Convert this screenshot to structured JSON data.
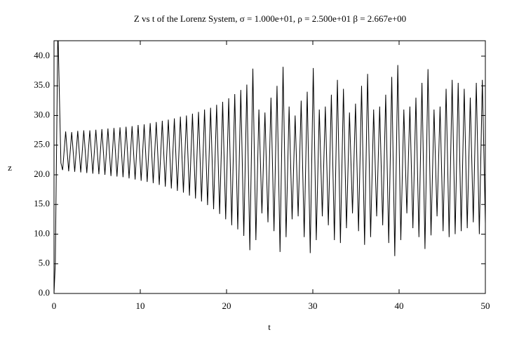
{
  "chart_data": {
    "type": "line",
    "title": "Z vs t of the Lorenz System, σ = 1.000e+01, ρ = 2.500e+01 β = 2.667e+00",
    "x_label": "t",
    "y_label": "z",
    "color": "#000000",
    "xlim": [
      0,
      50
    ],
    "xticks": [
      0,
      10,
      20,
      30,
      40,
      50
    ],
    "ylim": [
      0,
      42.6
    ],
    "yticks": [
      {
        "value": 0,
        "label": "0.0"
      },
      {
        "value": 5,
        "label": "5.0"
      },
      {
        "value": 10,
        "label": "10.0"
      },
      {
        "value": 15,
        "label": "15.0"
      },
      {
        "value": 20,
        "label": "20.0"
      },
      {
        "value": 25,
        "label": "25.0"
      },
      {
        "value": 30,
        "label": "30.0"
      },
      {
        "value": 35,
        "label": "35.0"
      },
      {
        "value": 40,
        "label": "40.0"
      }
    ],
    "x": [
      0,
      0.15,
      0.3,
      0.45,
      0.6,
      0.8,
      1.0,
      1.35,
      1.7,
      2.05,
      2.4,
      2.75,
      3.1,
      3.45,
      3.8,
      4.15,
      4.5,
      4.85,
      5.2,
      5.55,
      5.9,
      6.25,
      6.6,
      6.95,
      7.3,
      7.65,
      8.0,
      8.35,
      8.7,
      9.05,
      9.4,
      9.75,
      10.1,
      10.45,
      10.8,
      11.15,
      11.5,
      11.85,
      12.2,
      12.55,
      12.9,
      13.25,
      13.6,
      13.95,
      14.3,
      14.65,
      15.0,
      15.35,
      15.7,
      16.05,
      16.4,
      16.75,
      17.1,
      17.45,
      17.8,
      18.15,
      18.5,
      18.85,
      19.2,
      19.55,
      19.9,
      20.25,
      20.6,
      20.95,
      21.3,
      21.65,
      22.0,
      22.35,
      22.7,
      23.05,
      23.4,
      23.75,
      24.1,
      24.45,
      24.8,
      25.15,
      25.5,
      25.85,
      26.2,
      26.55,
      26.9,
      27.25,
      27.6,
      27.95,
      28.3,
      28.65,
      29.0,
      29.35,
      29.7,
      30.05,
      30.4,
      30.75,
      31.1,
      31.45,
      31.8,
      32.15,
      32.5,
      32.85,
      33.2,
      33.55,
      33.9,
      34.25,
      34.6,
      34.95,
      35.3,
      35.65,
      36.0,
      36.35,
      36.7,
      37.05,
      37.4,
      37.75,
      38.1,
      38.45,
      38.8,
      39.15,
      39.5,
      39.85,
      40.2,
      40.55,
      40.9,
      41.25,
      41.6,
      41.95,
      42.3,
      42.65,
      43.0,
      43.35,
      43.7,
      44.05,
      44.4,
      44.75,
      45.1,
      45.45,
      45.8,
      46.15,
      46.5,
      46.85,
      47.2,
      47.55,
      47.9,
      48.25,
      48.6,
      48.95,
      49.3,
      49.65,
      50.0
    ],
    "values": [
      0,
      5,
      25,
      45,
      35,
      22,
      20.8,
      27.3,
      20.6,
      27.2,
      20.5,
      27.4,
      20.4,
      27.5,
      20.3,
      27.5,
      20.2,
      27.6,
      20.1,
      27.7,
      20.0,
      27.8,
      19.8,
      27.9,
      19.7,
      28.0,
      19.6,
      28.1,
      19.4,
      28.2,
      19.2,
      28.4,
      19.0,
      28.5,
      18.8,
      28.7,
      18.6,
      28.9,
      18.3,
      29.1,
      18.0,
      29.3,
      17.7,
      29.5,
      17.3,
      29.8,
      17.0,
      30.0,
      16.5,
      30.3,
      16.0,
      30.6,
      15.5,
      31.0,
      14.9,
      31.3,
      14.2,
      31.8,
      13.4,
      32.3,
      12.5,
      32.9,
      11.5,
      33.6,
      10.8,
      34.3,
      9.7,
      35.2,
      7.3,
      37.9,
      9.0,
      31.0,
      13.5,
      30.5,
      12.0,
      33.0,
      10.5,
      35.0,
      7.0,
      38.2,
      9.5,
      31.5,
      12.5,
      30.0,
      13.0,
      32.5,
      9.5,
      34.0,
      6.8,
      38.0,
      9.0,
      31.0,
      13.0,
      31.5,
      11.5,
      33.5,
      9.0,
      36.0,
      8.5,
      34.5,
      11.0,
      30.5,
      13.5,
      32.0,
      10.5,
      35.0,
      8.2,
      37.0,
      9.5,
      31.0,
      13.0,
      31.5,
      11.5,
      33.5,
      8.5,
      36.5,
      6.3,
      38.5,
      9.0,
      31.0,
      13.5,
      31.5,
      11.0,
      33.0,
      9.5,
      35.5,
      7.5,
      37.8,
      9.8,
      31.0,
      13.0,
      31.5,
      10.5,
      34.5,
      9.5,
      36.0,
      10.0,
      35.5,
      10.5,
      34.5,
      11.0,
      33.0,
      12.0,
      35.5,
      10.0,
      36.0,
      11.8
    ]
  }
}
